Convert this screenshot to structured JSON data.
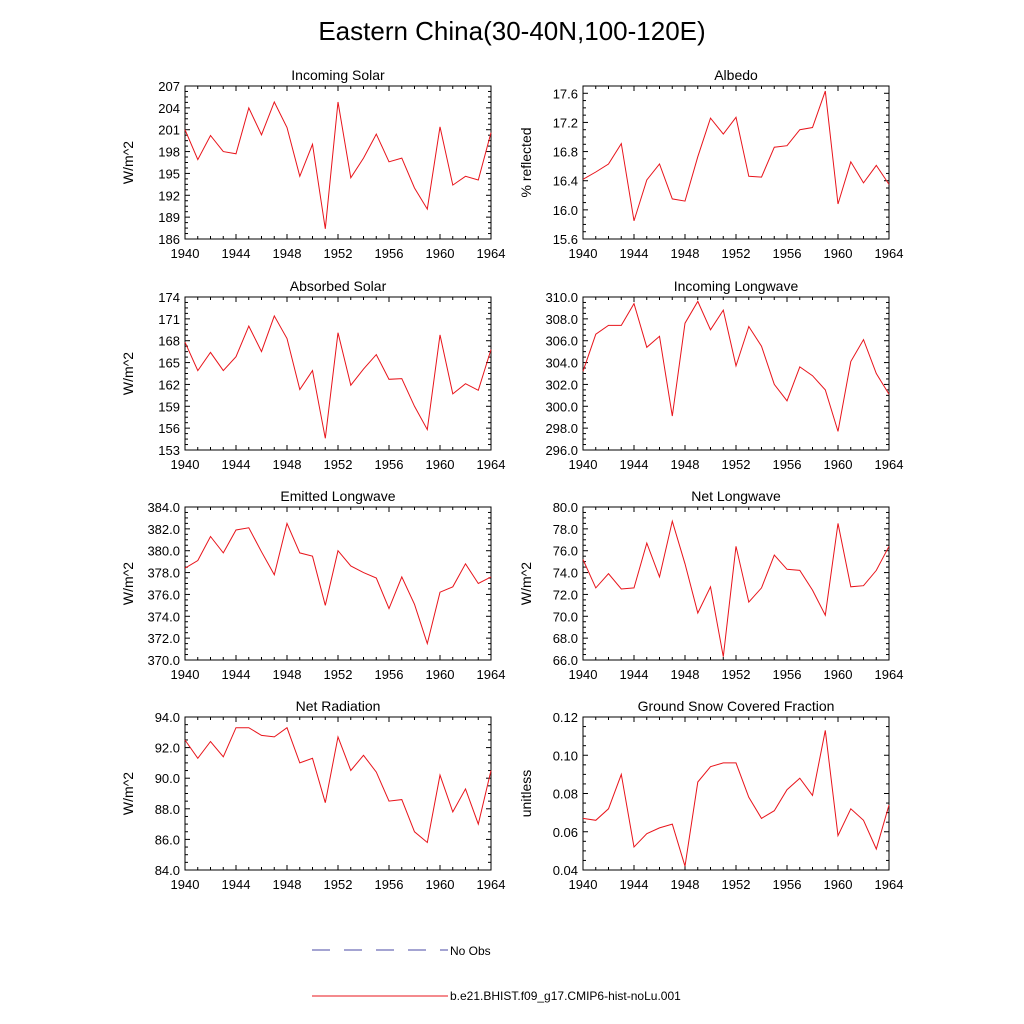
{
  "title": "Eastern China(30-40N,100-120E)",
  "line_color": "#e8141b",
  "obs_color": "#4a4aa6",
  "legend": {
    "obs_label": "No Obs",
    "model_label": "b.e21.BHIST.f09_g17.CMIP6-hist-noLu.001"
  },
  "chart_data": [
    {
      "type": "line",
      "title": "Incoming Solar",
      "ylabel": "W/m^2",
      "xlim": [
        1940,
        1964
      ],
      "xticks": [
        1940,
        1944,
        1948,
        1952,
        1956,
        1960,
        1964
      ],
      "xtick_labels": [
        "1940",
        "1944",
        "1948",
        "1952",
        "1956",
        "1960",
        "1964"
      ],
      "ylim": [
        186,
        207
      ],
      "yticks": [
        186,
        189,
        192,
        195,
        198,
        201,
        204,
        207
      ],
      "ytick_labels": [
        "186",
        "189",
        "192",
        "195",
        "198",
        "201",
        "204",
        "207"
      ],
      "x": [
        1940,
        1941,
        1942,
        1943,
        1944,
        1945,
        1946,
        1947,
        1948,
        1949,
        1950,
        1951,
        1952,
        1953,
        1954,
        1955,
        1956,
        1957,
        1958,
        1959,
        1960,
        1961,
        1962,
        1963,
        1964
      ],
      "values": [
        201.0,
        196.9,
        200.2,
        198.0,
        197.7,
        204.0,
        200.3,
        204.8,
        201.3,
        194.6,
        199.0,
        187.4,
        204.8,
        194.4,
        197.1,
        200.4,
        196.6,
        197.1,
        193.0,
        190.1,
        201.4,
        193.4,
        194.6,
        194.1,
        200.6
      ]
    },
    {
      "type": "line",
      "title": "Albedo",
      "ylabel": "% reflected",
      "xlim": [
        1940,
        1964
      ],
      "xticks": [
        1940,
        1944,
        1948,
        1952,
        1956,
        1960,
        1964
      ],
      "xtick_labels": [
        "1940",
        "1944",
        "1948",
        "1952",
        "1956",
        "1960",
        "1964"
      ],
      "ylim": [
        15.6,
        17.7
      ],
      "yticks": [
        15.6,
        16.0,
        16.4,
        16.8,
        17.2,
        17.6
      ],
      "ytick_labels": [
        "15.6",
        "16.0",
        "16.4",
        "16.8",
        "17.2",
        "17.6"
      ],
      "x": [
        1940,
        1941,
        1942,
        1943,
        1944,
        1945,
        1946,
        1947,
        1948,
        1949,
        1950,
        1951,
        1952,
        1953,
        1954,
        1955,
        1956,
        1957,
        1958,
        1959,
        1960,
        1961,
        1962,
        1963,
        1964
      ],
      "values": [
        16.42,
        16.52,
        16.63,
        16.91,
        15.85,
        16.41,
        16.63,
        16.15,
        16.12,
        16.73,
        17.26,
        17.04,
        17.27,
        16.46,
        16.45,
        16.86,
        16.88,
        17.1,
        17.13,
        17.63,
        16.08,
        16.66,
        16.37,
        16.61,
        16.35
      ]
    },
    {
      "type": "line",
      "title": "Absorbed Solar",
      "ylabel": "W/m^2",
      "xlim": [
        1940,
        1964
      ],
      "xticks": [
        1940,
        1944,
        1948,
        1952,
        1956,
        1960,
        1964
      ],
      "xtick_labels": [
        "1940",
        "1944",
        "1948",
        "1952",
        "1956",
        "1960",
        "1964"
      ],
      "ylim": [
        153,
        174
      ],
      "yticks": [
        153,
        156,
        159,
        162,
        165,
        168,
        171,
        174
      ],
      "ytick_labels": [
        "153",
        "156",
        "159",
        "162",
        "165",
        "168",
        "171",
        "174"
      ],
      "x": [
        1940,
        1941,
        1942,
        1943,
        1944,
        1945,
        1946,
        1947,
        1948,
        1949,
        1950,
        1951,
        1952,
        1953,
        1954,
        1955,
        1956,
        1957,
        1958,
        1959,
        1960,
        1961,
        1962,
        1963,
        1964
      ],
      "values": [
        167.8,
        163.9,
        166.4,
        163.9,
        165.8,
        170.0,
        166.5,
        171.4,
        168.3,
        161.3,
        163.9,
        154.6,
        169.1,
        161.9,
        164.1,
        166.1,
        162.7,
        162.8,
        159.0,
        155.8,
        168.8,
        160.7,
        162.1,
        161.2,
        166.8
      ]
    },
    {
      "type": "line",
      "title": "Incoming Longwave",
      "ylabel": "",
      "xlim": [
        1940,
        1964
      ],
      "xticks": [
        1940,
        1944,
        1948,
        1952,
        1956,
        1960,
        1964
      ],
      "xtick_labels": [
        "1940",
        "1944",
        "1948",
        "1952",
        "1956",
        "1960",
        "1964"
      ],
      "ylim": [
        296,
        310
      ],
      "yticks": [
        296,
        298,
        300,
        302,
        304,
        306,
        308,
        310
      ],
      "ytick_labels": [
        "296.0",
        "298.0",
        "300.0",
        "302.0",
        "304.0",
        "306.0",
        "308.0",
        "310.0"
      ],
      "x": [
        1940,
        1941,
        1942,
        1943,
        1944,
        1945,
        1946,
        1947,
        1948,
        1949,
        1950,
        1951,
        1952,
        1953,
        1954,
        1955,
        1956,
        1957,
        1958,
        1959,
        1960,
        1961,
        1962,
        1963,
        1964
      ],
      "values": [
        303.2,
        306.6,
        307.4,
        307.4,
        309.4,
        305.4,
        306.4,
        299.1,
        307.6,
        309.6,
        307.0,
        308.8,
        303.7,
        307.3,
        305.5,
        302.0,
        300.5,
        303.6,
        302.8,
        301.5,
        297.7,
        304.1,
        306.1,
        303.0,
        301.1
      ]
    },
    {
      "type": "line",
      "title": "Emitted Longwave",
      "ylabel": "W/m^2",
      "xlim": [
        1940,
        1964
      ],
      "xticks": [
        1940,
        1944,
        1948,
        1952,
        1956,
        1960,
        1964
      ],
      "xtick_labels": [
        "1940",
        "1944",
        "1948",
        "1952",
        "1956",
        "1960",
        "1964"
      ],
      "ylim": [
        370,
        384
      ],
      "yticks": [
        370,
        372,
        374,
        376,
        378,
        380,
        382,
        384
      ],
      "ytick_labels": [
        "370.0",
        "372.0",
        "374.0",
        "376.0",
        "378.0",
        "380.0",
        "382.0",
        "384.0"
      ],
      "x": [
        1940,
        1941,
        1942,
        1943,
        1944,
        1945,
        1946,
        1947,
        1948,
        1949,
        1950,
        1951,
        1952,
        1953,
        1954,
        1955,
        1956,
        1957,
        1958,
        1959,
        1960,
        1961,
        1962,
        1963,
        1964
      ],
      "values": [
        378.4,
        379.1,
        381.3,
        379.8,
        381.9,
        382.1,
        379.9,
        377.8,
        382.5,
        379.8,
        379.5,
        375.0,
        380.0,
        378.6,
        378.0,
        377.5,
        374.7,
        377.6,
        375.1,
        371.5,
        376.2,
        376.7,
        378.8,
        377.0,
        377.6
      ]
    },
    {
      "type": "line",
      "title": "Net Longwave",
      "ylabel": "W/m^2",
      "xlim": [
        1940,
        1964
      ],
      "xticks": [
        1940,
        1944,
        1948,
        1952,
        1956,
        1960,
        1964
      ],
      "xtick_labels": [
        "1940",
        "1944",
        "1948",
        "1952",
        "1956",
        "1960",
        "1964"
      ],
      "ylim": [
        66,
        80
      ],
      "yticks": [
        66,
        68,
        70,
        72,
        74,
        76,
        78,
        80
      ],
      "ytick_labels": [
        "66.0",
        "68.0",
        "70.0",
        "72.0",
        "74.0",
        "76.0",
        "78.0",
        "80.0"
      ],
      "x": [
        1940,
        1941,
        1942,
        1943,
        1944,
        1945,
        1946,
        1947,
        1948,
        1949,
        1950,
        1951,
        1952,
        1953,
        1954,
        1955,
        1956,
        1957,
        1958,
        1959,
        1960,
        1961,
        1962,
        1963,
        1964
      ],
      "values": [
        75.2,
        72.6,
        73.9,
        72.5,
        72.6,
        76.7,
        73.6,
        78.7,
        74.8,
        70.3,
        72.7,
        66.3,
        76.4,
        71.3,
        72.6,
        75.6,
        74.3,
        74.2,
        72.4,
        70.1,
        78.5,
        72.7,
        72.8,
        74.2,
        76.4
      ]
    },
    {
      "type": "line",
      "title": "Net Radiation",
      "ylabel": "W/m^2",
      "xlim": [
        1940,
        1964
      ],
      "xticks": [
        1940,
        1944,
        1948,
        1952,
        1956,
        1960,
        1964
      ],
      "xtick_labels": [
        "1940",
        "1944",
        "1948",
        "1952",
        "1956",
        "1960",
        "1964"
      ],
      "ylim": [
        84,
        94
      ],
      "yticks": [
        84,
        86,
        88,
        90,
        92,
        94
      ],
      "ytick_labels": [
        "84.0",
        "86.0",
        "88.0",
        "90.0",
        "92.0",
        "94.0"
      ],
      "x": [
        1940,
        1941,
        1942,
        1943,
        1944,
        1945,
        1946,
        1947,
        1948,
        1949,
        1950,
        1951,
        1952,
        1953,
        1954,
        1955,
        1956,
        1957,
        1958,
        1959,
        1960,
        1961,
        1962,
        1963,
        1964
      ],
      "values": [
        92.5,
        91.3,
        92.4,
        91.4,
        93.3,
        93.3,
        92.8,
        92.7,
        93.3,
        91.0,
        91.3,
        88.4,
        92.7,
        90.5,
        91.5,
        90.4,
        88.5,
        88.6,
        86.5,
        85.8,
        90.2,
        87.8,
        89.3,
        87.0,
        90.5
      ]
    },
    {
      "type": "line",
      "title": "Ground Snow Covered Fraction",
      "ylabel": "unitless",
      "xlim": [
        1940,
        1964
      ],
      "xticks": [
        1940,
        1944,
        1948,
        1952,
        1956,
        1960,
        1964
      ],
      "xtick_labels": [
        "1940",
        "1944",
        "1948",
        "1952",
        "1956",
        "1960",
        "1964"
      ],
      "ylim": [
        0.04,
        0.12
      ],
      "yticks": [
        0.04,
        0.06,
        0.08,
        0.1,
        0.12
      ],
      "ytick_labels": [
        "0.04",
        "0.06",
        "0.08",
        "0.10",
        "0.12"
      ],
      "x": [
        1940,
        1941,
        1942,
        1943,
        1944,
        1945,
        1946,
        1947,
        1948,
        1949,
        1950,
        1951,
        1952,
        1953,
        1954,
        1955,
        1956,
        1957,
        1958,
        1959,
        1960,
        1961,
        1962,
        1963,
        1964
      ],
      "values": [
        0.067,
        0.066,
        0.072,
        0.09,
        0.052,
        0.059,
        0.062,
        0.064,
        0.042,
        0.086,
        0.094,
        0.096,
        0.096,
        0.078,
        0.067,
        0.071,
        0.082,
        0.088,
        0.079,
        0.113,
        0.058,
        0.072,
        0.066,
        0.051,
        0.074
      ]
    }
  ]
}
